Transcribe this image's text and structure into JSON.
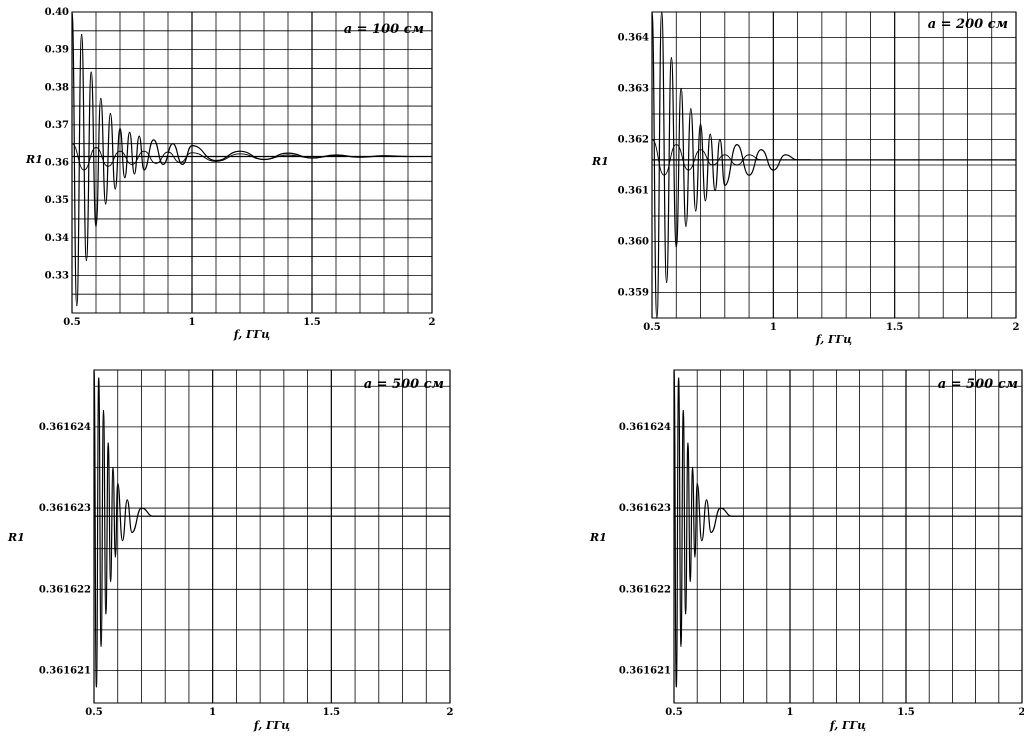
{
  "chart_data": [
    {
      "type": "line",
      "title": "",
      "annotation": "a = 100 см",
      "xlabel": "f, ГГц",
      "ylabel": "R1",
      "xlim": [
        0.5,
        2.0
      ],
      "ylim": [
        0.32,
        0.4
      ],
      "xticks": [
        "0.5",
        "1",
        "1.5",
        "2"
      ],
      "yticks": [
        "0.33",
        "0.34",
        "0.35",
        "0.36",
        "0.37",
        "0.38",
        "0.39",
        "0.40"
      ],
      "ytick_values": [
        0.33,
        0.34,
        0.35,
        0.36,
        0.37,
        0.38,
        0.39,
        0.4
      ],
      "grid": true,
      "limit_line": 0.3616,
      "series": [
        {
          "x": [
            0.5,
            0.52,
            0.54,
            0.56,
            0.58,
            0.6,
            0.62,
            0.64,
            0.66,
            0.68,
            0.7,
            0.72,
            0.74,
            0.76,
            0.78,
            0.8,
            0.84,
            0.88,
            0.92,
            0.96,
            1.0,
            1.1,
            1.2,
            1.3,
            1.4,
            1.5,
            1.6,
            1.7,
            1.8,
            1.9
          ],
          "y": [
            0.4,
            0.322,
            0.394,
            0.334,
            0.384,
            0.343,
            0.377,
            0.349,
            0.373,
            0.353,
            0.369,
            0.356,
            0.368,
            0.357,
            0.367,
            0.358,
            0.366,
            0.3595,
            0.365,
            0.3595,
            0.3645,
            0.3605,
            0.363,
            0.3608,
            0.3625,
            0.3612,
            0.362,
            0.3614,
            0.3618,
            0.3616
          ]
        },
        {
          "x": [
            0.5,
            0.55,
            0.6,
            0.65,
            0.7,
            0.75,
            0.8,
            0.85,
            0.9,
            0.95,
            1.0,
            1.1,
            1.2,
            1.3,
            1.4,
            1.5,
            1.6,
            1.7,
            1.8,
            1.9
          ],
          "y": [
            0.365,
            0.358,
            0.364,
            0.359,
            0.363,
            0.3595,
            0.363,
            0.3598,
            0.3628,
            0.36,
            0.3626,
            0.3603,
            0.3623,
            0.3608,
            0.362,
            0.3612,
            0.3618,
            0.3614,
            0.3617,
            0.3616
          ]
        }
      ]
    },
    {
      "type": "line",
      "title": "",
      "annotation": "a = 200 см",
      "xlabel": "f, ГГц",
      "ylabel": "R1",
      "xlim": [
        0.5,
        2.0
      ],
      "ylim": [
        0.3585,
        0.3645
      ],
      "xticks": [
        "0.5",
        "1",
        "1.5",
        "2"
      ],
      "yticks": [
        "0.359",
        "0.360",
        "0.361",
        "0.362",
        "0.363",
        "0.364"
      ],
      "ytick_values": [
        0.359,
        0.36,
        0.361,
        0.362,
        0.363,
        0.364
      ],
      "grid": true,
      "limit_line": 0.3616,
      "series": [
        {
          "x": [
            0.5,
            0.52,
            0.54,
            0.56,
            0.58,
            0.6,
            0.62,
            0.64,
            0.66,
            0.68,
            0.7,
            0.72,
            0.74,
            0.76,
            0.78,
            0.8,
            0.85,
            0.9,
            0.95,
            1.0,
            1.05,
            1.1,
            1.15
          ],
          "y": [
            0.3645,
            0.3585,
            0.3645,
            0.3592,
            0.3636,
            0.3599,
            0.363,
            0.3603,
            0.3626,
            0.3606,
            0.3623,
            0.3608,
            0.3621,
            0.361,
            0.362,
            0.3611,
            0.3619,
            0.3613,
            0.3618,
            0.3614,
            0.3617,
            0.3616,
            0.3616
          ]
        },
        {
          "x": [
            0.5,
            0.55,
            0.6,
            0.65,
            0.7,
            0.75,
            0.8,
            0.85,
            0.9,
            0.95,
            1.0,
            1.05,
            1.1,
            1.15
          ],
          "y": [
            0.362,
            0.3613,
            0.3619,
            0.3614,
            0.3618,
            0.3615,
            0.3617,
            0.3615,
            0.3617,
            0.3616,
            0.3616,
            0.3616,
            0.3616,
            0.3616
          ]
        }
      ]
    },
    {
      "type": "line",
      "title": "",
      "annotation": "a = 500 см",
      "xlabel": "f, ГГц",
      "ylabel": "R1",
      "xlim": [
        0.5,
        2.0
      ],
      "ylim": [
        0.3616206,
        0.3616247
      ],
      "xticks": [
        "0.5",
        "1",
        "1.5",
        "2"
      ],
      "yticks": [
        "0.361621",
        "0.361622",
        "0.361623",
        "0.361624"
      ],
      "ytick_values": [
        0.361621,
        0.361622,
        0.361623,
        0.361624
      ],
      "grid": true,
      "limit_line": 0.3616229,
      "series": [
        {
          "x": [
            0.5,
            0.51,
            0.52,
            0.53,
            0.54,
            0.55,
            0.56,
            0.57,
            0.58,
            0.59,
            0.6,
            0.62,
            0.64,
            0.66,
            0.7,
            0.75,
            0.8
          ],
          "y": [
            0.3616247,
            0.3616208,
            0.3616246,
            0.3616213,
            0.3616242,
            0.3616217,
            0.3616238,
            0.3616221,
            0.3616235,
            0.3616224,
            0.3616233,
            0.3616226,
            0.3616231,
            0.3616227,
            0.361623,
            0.3616229,
            0.3616229
          ]
        }
      ]
    },
    {
      "type": "line",
      "title": "",
      "annotation": "a = 500 см",
      "xlabel": "f, ГГц",
      "ylabel": "R1",
      "xlim": [
        0.5,
        2.0
      ],
      "ylim": [
        0.3616206,
        0.3616247
      ],
      "xticks": [
        "0.5",
        "1",
        "1.5",
        "2"
      ],
      "yticks": [
        "0.361621",
        "0.361622",
        "0.361623",
        "0.361624"
      ],
      "ytick_values": [
        0.361621,
        0.361622,
        0.361623,
        0.361624
      ],
      "grid": true,
      "limit_line": 0.3616229,
      "series": [
        {
          "x": [
            0.5,
            0.51,
            0.52,
            0.53,
            0.54,
            0.55,
            0.56,
            0.57,
            0.58,
            0.59,
            0.6,
            0.62,
            0.64,
            0.66,
            0.7,
            0.75,
            0.8
          ],
          "y": [
            0.3616247,
            0.3616208,
            0.3616246,
            0.3616213,
            0.3616242,
            0.3616217,
            0.3616238,
            0.3616221,
            0.3616235,
            0.3616224,
            0.3616233,
            0.3616226,
            0.3616231,
            0.3616227,
            0.361623,
            0.3616229,
            0.3616229
          ]
        }
      ]
    }
  ]
}
